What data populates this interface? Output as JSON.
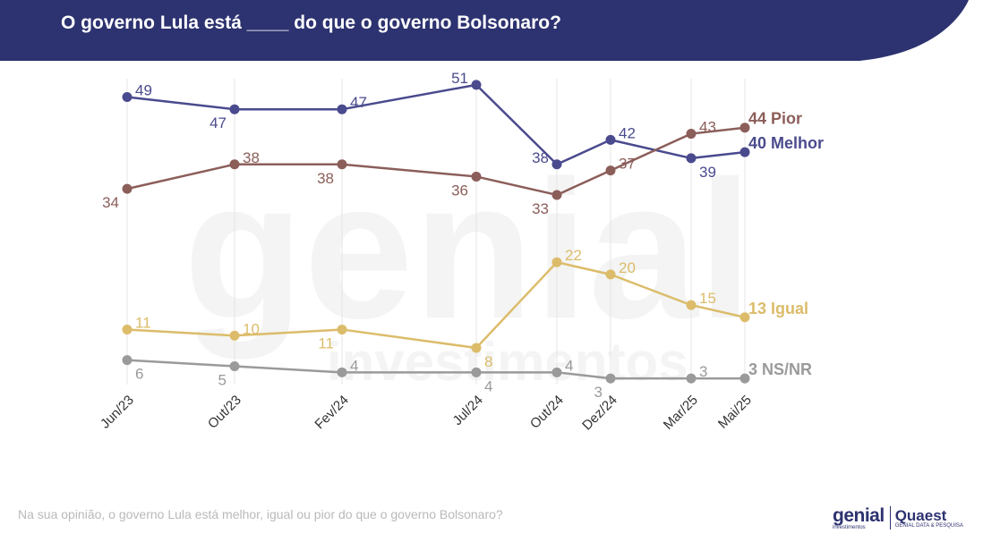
{
  "header": {
    "title": "O governo Lula está ____ do que o governo Bolsonaro?",
    "background": "#2d3270"
  },
  "footnote": "Na sua opinião, o governo Lula está melhor, igual ou pior do que o governo Bolsonaro?",
  "logos": {
    "genial": "genial",
    "genial_sub": "investimentos",
    "quaest": "Quaest",
    "quaest_sub": "GENIAL DATA & PESQUISA"
  },
  "watermark": {
    "main": "genial",
    "sub": "investimentos"
  },
  "chart_data": {
    "type": "line",
    "categories": [
      "Jun/23",
      "Out/23",
      "Fev/24",
      "Jul/24",
      "Out/24",
      "Dez/24",
      "Mar/25",
      "Mai/25"
    ],
    "x_months": [
      0,
      4,
      8,
      13,
      16,
      18,
      21,
      23
    ],
    "ylim": [
      2,
      52
    ],
    "grid": "vertical",
    "series": [
      {
        "key": "melhor",
        "name": "Melhor",
        "end_label": "40 Melhor",
        "color": "#4a4a8e",
        "values": [
          49,
          47,
          47,
          51,
          38,
          42,
          39,
          40
        ],
        "label_pos": [
          "ar",
          "bl",
          "ar",
          "al",
          "al",
          "ar",
          "br"
        ]
      },
      {
        "key": "pior",
        "name": "Pior",
        "end_label": "44 Pior",
        "color": "#8b5e5a",
        "values": [
          34,
          38,
          38,
          36,
          33,
          37,
          43,
          44
        ],
        "label_pos": [
          "bl",
          "ar",
          "bl",
          "bl",
          "bl",
          "ar",
          "ar"
        ]
      },
      {
        "key": "igual",
        "name": "Igual",
        "end_label": "13 Igual",
        "color": "#dcbc6a",
        "values": [
          11,
          10,
          11,
          8,
          22,
          20,
          15,
          13
        ],
        "label_pos": [
          "ar",
          "ar",
          "bl",
          "br",
          "ar",
          "ar",
          "ar"
        ]
      },
      {
        "key": "nsnr",
        "name": "NS/NR",
        "end_label": "3 NS/NR",
        "color": "#9a9a9a",
        "values": [
          6,
          5,
          4,
          4,
          4,
          3,
          3,
          3
        ],
        "label_pos": [
          "br",
          "bl",
          "ar",
          "br",
          "ar",
          "bl",
          "ar"
        ]
      }
    ]
  }
}
